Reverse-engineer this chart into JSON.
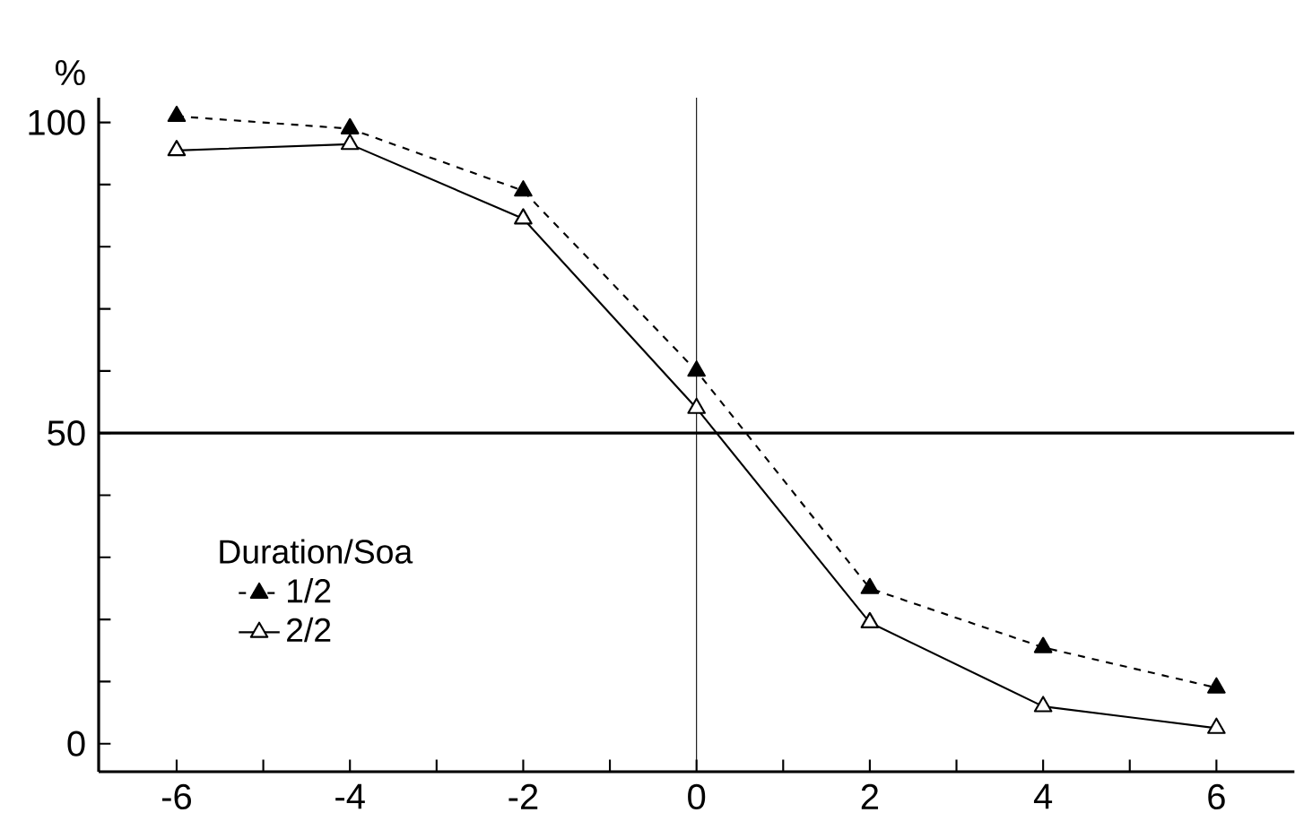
{
  "chart_data": {
    "type": "line",
    "ylabel": "%",
    "legend_title": "Duration/Soa",
    "x": [
      -6,
      -4,
      -2,
      0,
      2,
      4,
      6
    ],
    "series": [
      {
        "name": "1/2",
        "color": "#000000",
        "line_style": "dashed",
        "values": [
          101,
          99,
          89,
          60,
          25,
          15.5,
          9
        ]
      },
      {
        "name": "2/2",
        "color": "#000000",
        "line_style": "solid",
        "values": [
          95.5,
          96.5,
          84.5,
          54,
          19.5,
          6,
          2.5
        ]
      }
    ],
    "xlim": [
      -6.9,
      6.9
    ],
    "ylim": [
      -4.5,
      104
    ],
    "xticks": [
      -6,
      {
        "value": -5,
        "label": null
      },
      -4,
      {
        "value": -3,
        "label": null
      },
      -2,
      {
        "value": -1,
        "label": null
      },
      0,
      {
        "value": 1,
        "label": null
      },
      2,
      {
        "value": 3,
        "label": null
      },
      4,
      {
        "value": 5,
        "label": null
      },
      6
    ],
    "yticks": [
      0,
      {
        "value": 10,
        "label": null
      },
      {
        "value": 20,
        "label": null
      },
      {
        "value": 30,
        "label": null
      },
      {
        "value": 40,
        "label": null
      },
      50,
      {
        "value": 60,
        "label": null
      },
      {
        "value": 70,
        "label": null
      },
      {
        "value": 80,
        "label": null
      },
      {
        "value": 90,
        "label": null
      },
      100
    ],
    "ref_lines": [
      {
        "axis": "x",
        "value": 0
      },
      {
        "axis": "y",
        "value": 50
      }
    ],
    "marker": "triangle",
    "legend": "left",
    "grid": false
  }
}
